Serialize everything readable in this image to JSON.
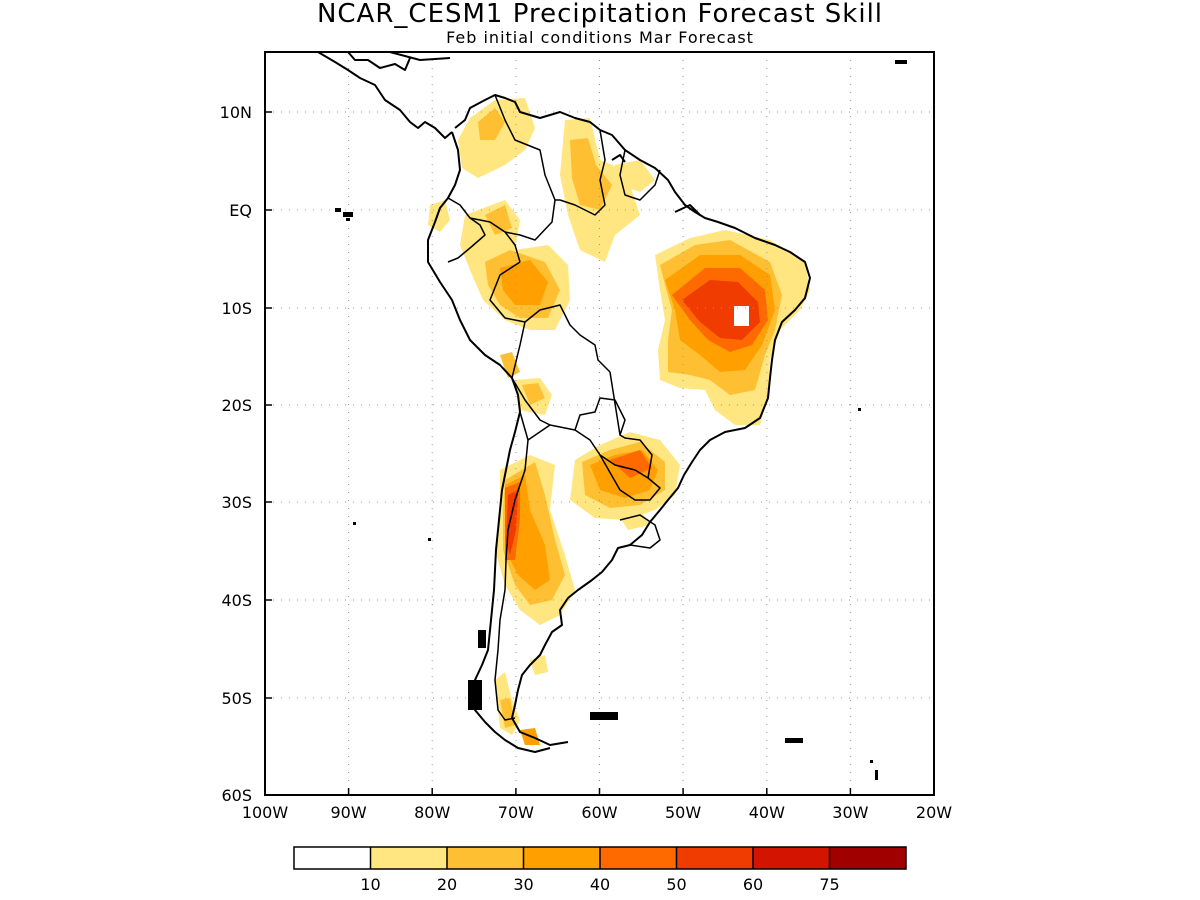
{
  "title": "NCAR_CESM1 Precipitation Forecast Skill",
  "subtitle": "Feb initial conditions  Mar Forecast",
  "map": {
    "lon_range": [
      -100,
      -20
    ],
    "lat_range": [
      -60,
      15
    ],
    "x_tick_labels": [
      "100W",
      "90W",
      "80W",
      "70W",
      "60W",
      "50W",
      "40W",
      "30W",
      "20W"
    ],
    "y_tick_labels": [
      "10N",
      "EQ",
      "10S",
      "20S",
      "30S",
      "40S",
      "50S",
      "60S"
    ],
    "grid": "dotted"
  },
  "colorbar": {
    "colors": [
      "#ffffff",
      "#ffe680",
      "#ffbf33",
      "#ff9f00",
      "#ff6a00",
      "#f03c00",
      "#d21400",
      "#a00000"
    ],
    "labels": [
      "10",
      "20",
      "30",
      "40",
      "50",
      "60",
      "75"
    ]
  }
}
